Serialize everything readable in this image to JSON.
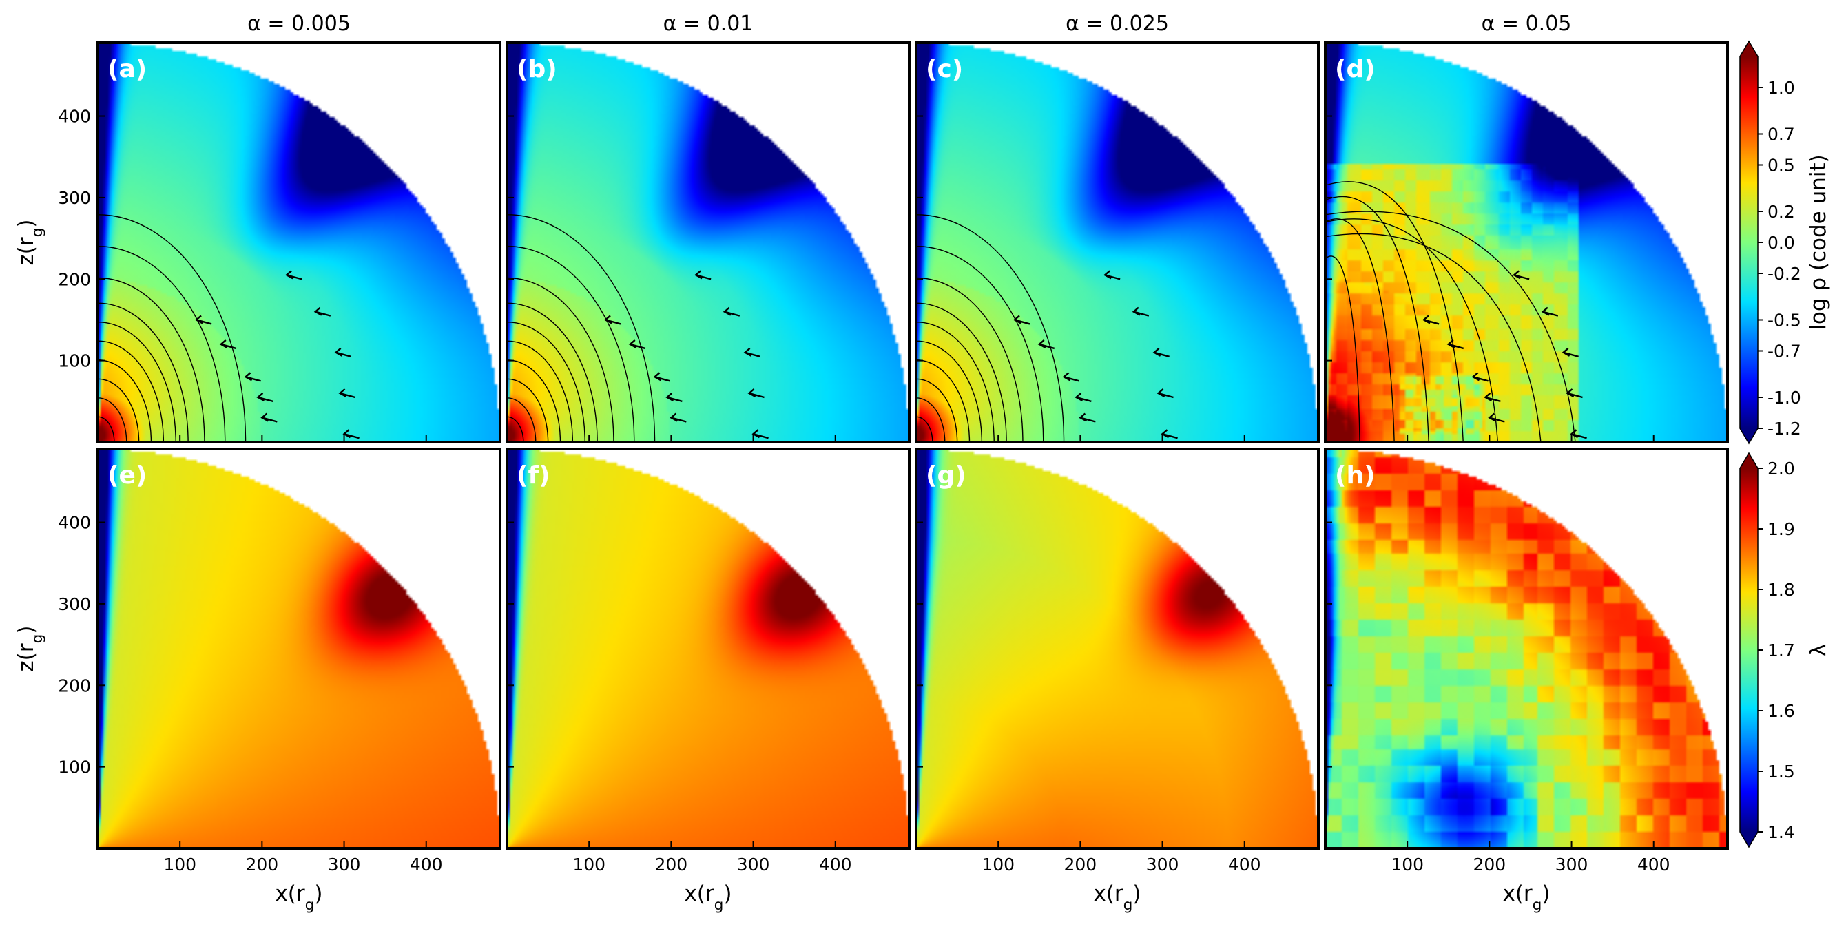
{
  "figure": {
    "columns": [
      "α = 0.005",
      "α = 0.01",
      "α = 0.025",
      "α = 0.05"
    ],
    "panel_labels": [
      "(a)",
      "(b)",
      "(c)",
      "(d)",
      "(e)",
      "(f)",
      "(g)",
      "(h)"
    ],
    "xlabel": "x(r_g)",
    "ylabel": "z(r_g)",
    "x_ticks": [
      100,
      200,
      300,
      400
    ],
    "y_ticks": [
      100,
      200,
      300,
      400
    ],
    "colorbar_top": {
      "label": "log ρ (code unit)",
      "ticks": [
        "1.0",
        "0.7",
        "0.5",
        "0.2",
        "0.0",
        "-0.2",
        "-0.5",
        "-0.7",
        "-1.0",
        "-1.2"
      ]
    },
    "colorbar_bottom": {
      "label": "λ",
      "ticks": [
        "2.0",
        "1.9",
        "1.8",
        "1.7",
        "1.6",
        "1.5",
        "1.4"
      ]
    }
  },
  "chart_data": [
    {
      "type": "heatmap",
      "title": "α = 0.005",
      "panel": "(a)",
      "quantity": "log ρ (code unit)",
      "xlim": [
        0,
        490
      ],
      "ylim": [
        0,
        490
      ],
      "colormap": "jet",
      "vmin": -1.2,
      "vmax": 1.2,
      "overlays": [
        "density contours",
        "velocity vectors"
      ]
    },
    {
      "type": "heatmap",
      "title": "α = 0.01",
      "panel": "(b)",
      "quantity": "log ρ (code unit)",
      "xlim": [
        0,
        490
      ],
      "ylim": [
        0,
        490
      ],
      "colormap": "jet",
      "vmin": -1.2,
      "vmax": 1.2,
      "overlays": [
        "density contours",
        "velocity vectors"
      ]
    },
    {
      "type": "heatmap",
      "title": "α = 0.025",
      "panel": "(c)",
      "quantity": "log ρ (code unit)",
      "xlim": [
        0,
        490
      ],
      "ylim": [
        0,
        490
      ],
      "colormap": "jet",
      "vmin": -1.2,
      "vmax": 1.2,
      "overlays": [
        "density contours",
        "velocity vectors"
      ]
    },
    {
      "type": "heatmap",
      "title": "α = 0.05",
      "panel": "(d)",
      "quantity": "log ρ (code unit)",
      "xlim": [
        0,
        490
      ],
      "ylim": [
        0,
        490
      ],
      "colormap": "jet",
      "vmin": -1.2,
      "vmax": 1.2,
      "overlays": [
        "density contours",
        "velocity vectors"
      ]
    },
    {
      "type": "heatmap",
      "panel": "(e)",
      "quantity": "λ",
      "xlim": [
        0,
        490
      ],
      "ylim": [
        0,
        490
      ],
      "colormap": "jet",
      "vmin": 1.4,
      "vmax": 2.0
    },
    {
      "type": "heatmap",
      "panel": "(f)",
      "quantity": "λ",
      "xlim": [
        0,
        490
      ],
      "ylim": [
        0,
        490
      ],
      "colormap": "jet",
      "vmin": 1.4,
      "vmax": 2.0
    },
    {
      "type": "heatmap",
      "panel": "(g)",
      "quantity": "λ",
      "xlim": [
        0,
        490
      ],
      "ylim": [
        0,
        490
      ],
      "colormap": "jet",
      "vmin": 1.4,
      "vmax": 2.0
    },
    {
      "type": "heatmap",
      "panel": "(h)",
      "quantity": "λ",
      "xlim": [
        0,
        490
      ],
      "ylim": [
        0,
        490
      ],
      "colormap": "jet",
      "vmin": 1.4,
      "vmax": 2.0
    }
  ]
}
